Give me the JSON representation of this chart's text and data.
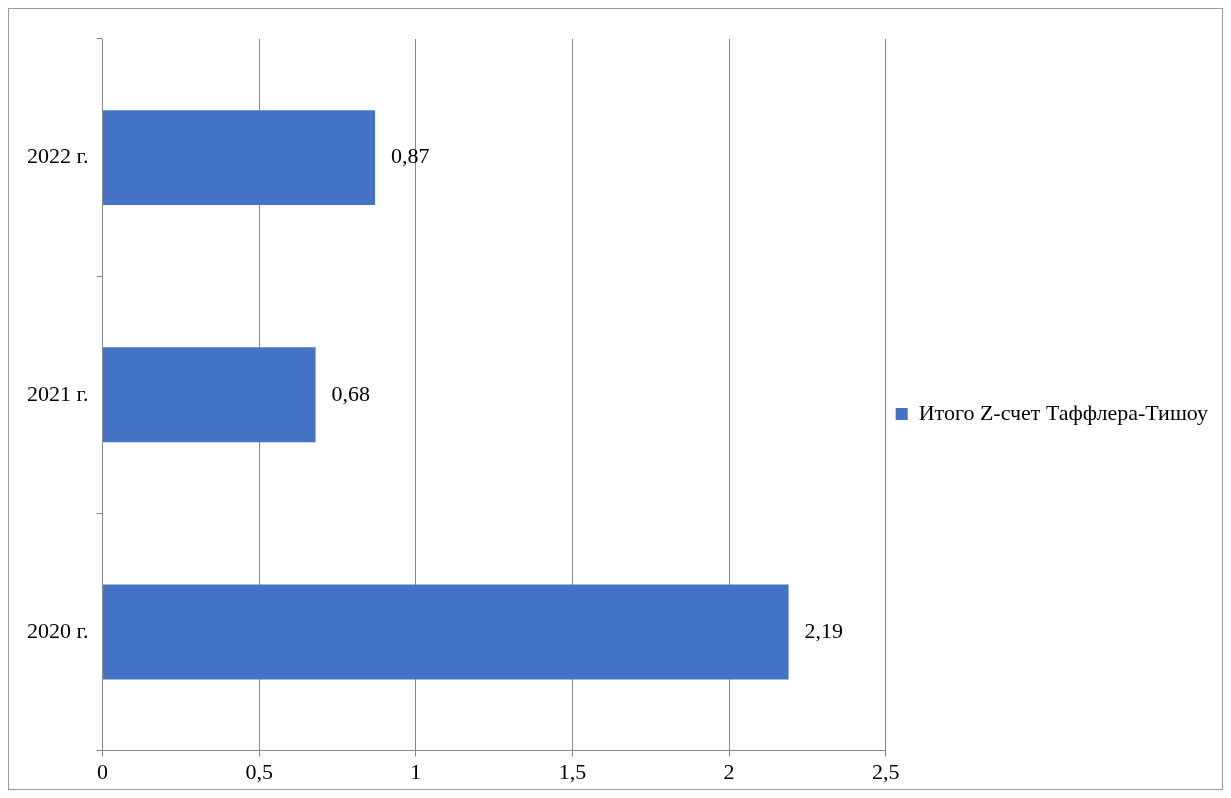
{
  "chart_data": {
    "type": "bar",
    "orientation": "horizontal",
    "categories": [
      "2022 г.",
      "2021 г.",
      "2020 г."
    ],
    "series": [
      {
        "name": "Итого Z-счет Таффлера-Тишоу",
        "color": "#4472c4",
        "values": [
          0.87,
          0.68,
          2.19
        ],
        "value_labels": [
          "0,87",
          "0,68",
          "2,19"
        ]
      }
    ],
    "xlim": [
      0,
      2.5
    ],
    "xticks": [
      0,
      {
        "value": 0.5,
        "label": "0,5"
      },
      1,
      {
        "value": 1.5,
        "label": "1,5"
      },
      2,
      {
        "value": 2.5,
        "label": "2,5"
      }
    ],
    "grid": "x",
    "legend": "right"
  }
}
